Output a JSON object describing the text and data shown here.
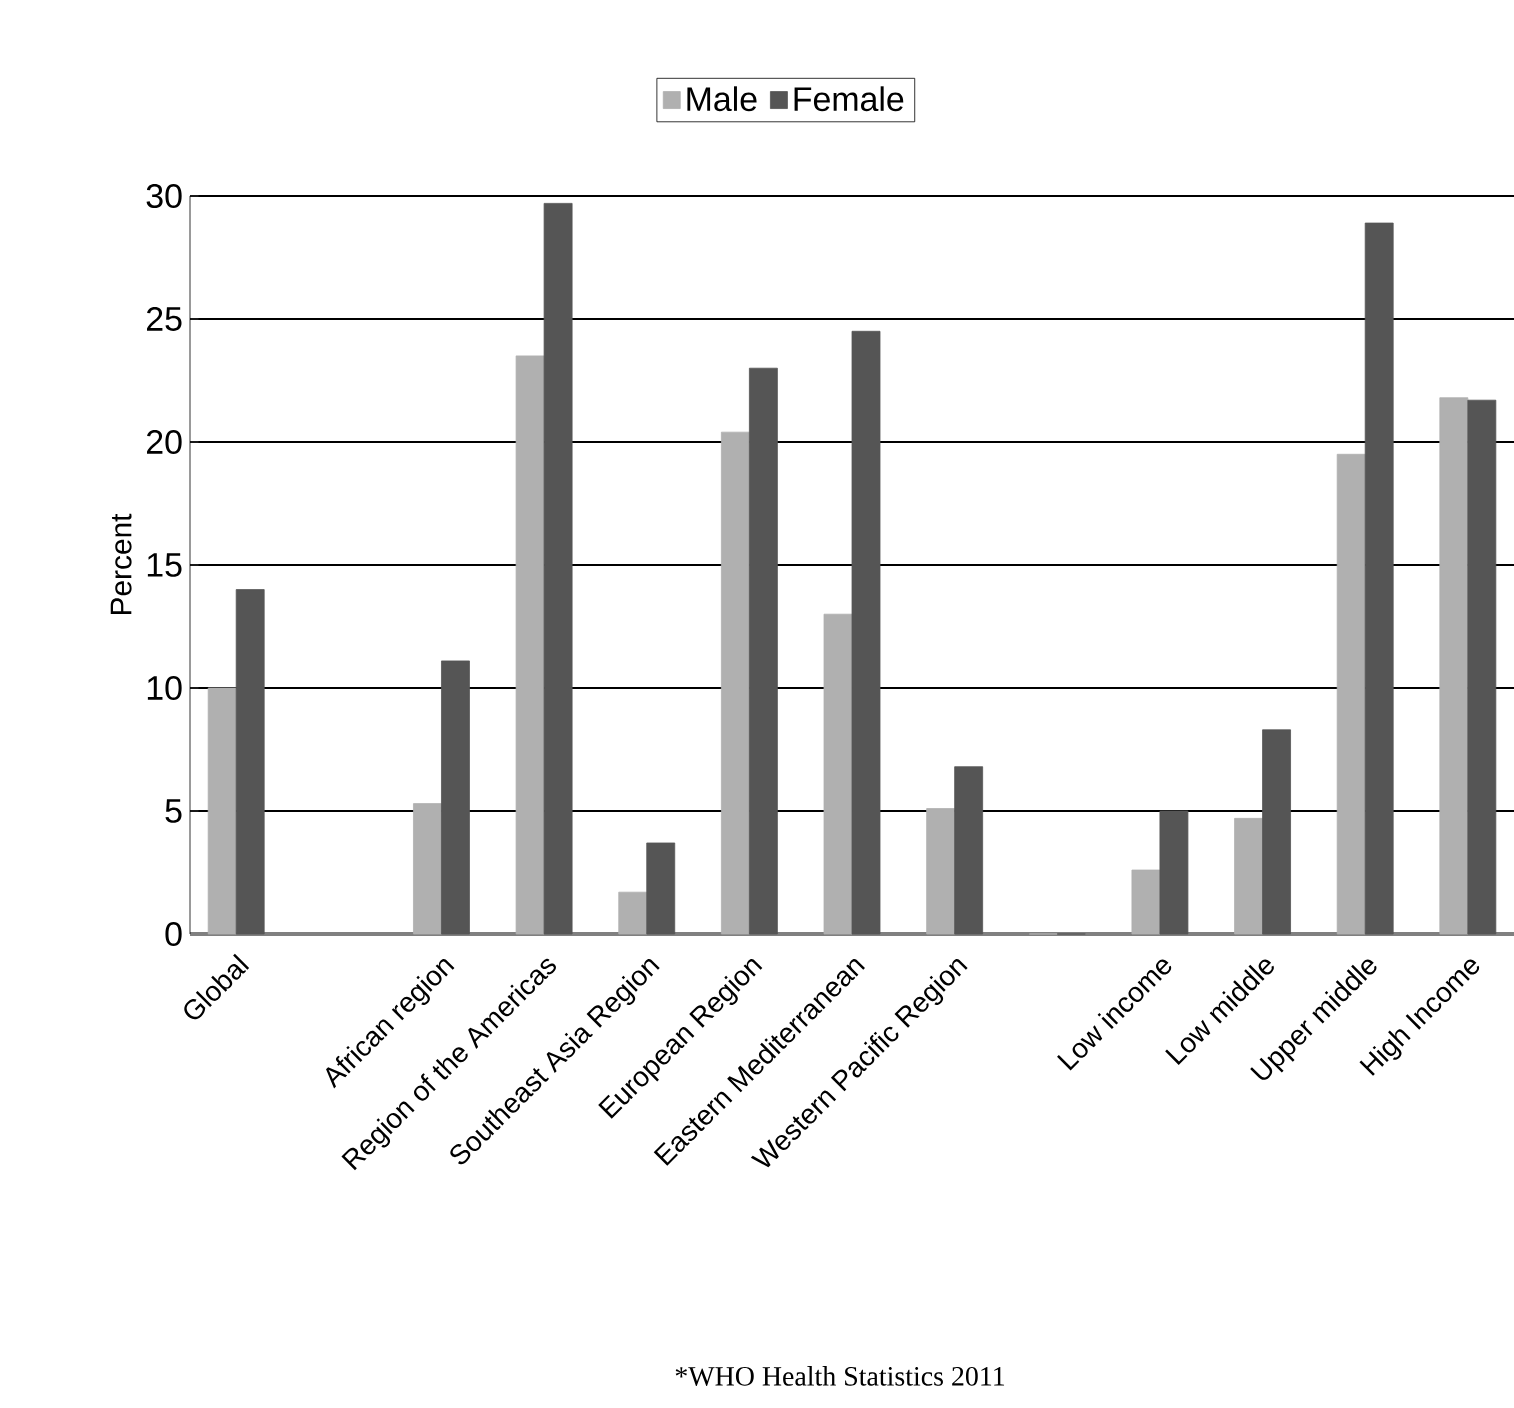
{
  "chart_data": {
    "type": "bar",
    "ylabel": "Percent",
    "categories": [
      "Global",
      null,
      "African region",
      "Region of the Americas",
      "Southeast Asia Region",
      "European Region",
      "Eastern Mediterranean",
      "Western Pacific Region",
      null,
      "Low income",
      "Low middle",
      "Upper middle",
      "High Income"
    ],
    "series": [
      {
        "name": "Male",
        "color": "#b0b0b0",
        "values": [
          10,
          null,
          5.3,
          23.5,
          1.7,
          20.4,
          13,
          5.1,
          0,
          2.6,
          4.7,
          19.5,
          21.8
        ]
      },
      {
        "name": "Female",
        "color": "#555555",
        "values": [
          14,
          null,
          11.1,
          29.7,
          3.7,
          23,
          24.5,
          6.8,
          0,
          5,
          8.3,
          28.9,
          21.7
        ]
      }
    ],
    "ylim": [
      0,
      30
    ],
    "yticks": [
      0,
      5,
      10,
      15,
      20,
      25,
      30
    ],
    "grid": "y",
    "legend": "top",
    "annotations": [
      "*WHO Health Statistics 2011"
    ]
  }
}
